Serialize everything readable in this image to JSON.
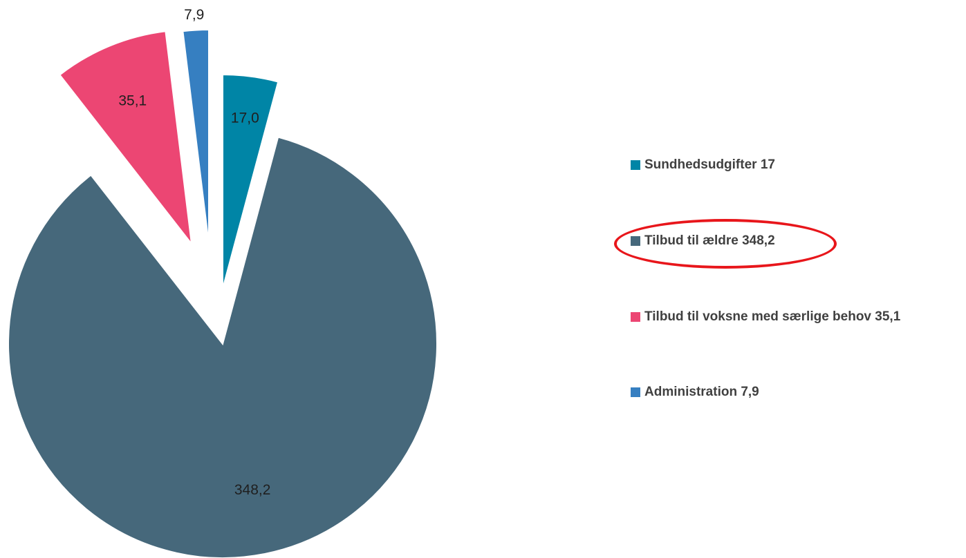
{
  "chart_data": {
    "type": "pie",
    "categories": [
      "Sundhedsudgifter",
      "Tilbud til ældre",
      "Tilbud til voksne med særlige behov",
      "Administration"
    ],
    "values": [
      17.0,
      348.2,
      35.1,
      7.9
    ],
    "data_labels": [
      "17,0",
      "348,2",
      "35,1",
      "7,9"
    ],
    "legend": [
      "Sundhedsudgifter 17",
      "Tilbud til ældre 348,2",
      "Tilbud til voksne med særlige behov 35,1",
      "Administration 7,9"
    ],
    "colors": [
      "#0085a6",
      "#46687b",
      "#ec4673",
      "#367fc1"
    ],
    "exploded": true,
    "legend_position": "right",
    "highlighted_legend_item": "Tilbud til ældre 348,2",
    "highlight_color": "#e8161b"
  }
}
